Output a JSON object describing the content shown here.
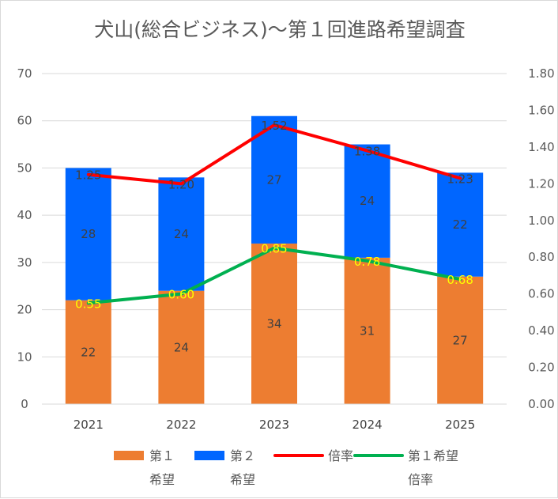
{
  "chart_data": {
    "type": "bar",
    "title": "犬山(総合ビジネス)〜第１回進路希望調査",
    "categories": [
      "2021",
      "2022",
      "2023",
      "2024",
      "2025"
    ],
    "stacked": true,
    "series": [
      {
        "name": "第１希望",
        "kind": "bar",
        "axis": "left",
        "color": "#ed7d31",
        "values": [
          22,
          24,
          34,
          31,
          27
        ],
        "labels": [
          "22",
          "24",
          "34",
          "31",
          "27"
        ]
      },
      {
        "name": "第２希望",
        "kind": "bar",
        "axis": "left",
        "color": "#0066ff",
        "values": [
          28,
          24,
          27,
          24,
          22
        ],
        "labels": [
          "28",
          "24",
          "27",
          "24",
          "22"
        ]
      },
      {
        "name": "倍率",
        "kind": "line",
        "axis": "right",
        "color": "#ff0000",
        "values": [
          1.25,
          1.2,
          1.52,
          1.38,
          1.23
        ],
        "labels": [
          "1.25",
          "1.20",
          "1.52",
          "1.38",
          "1.23"
        ]
      },
      {
        "name": "第１希望倍率",
        "kind": "line",
        "axis": "right",
        "color": "#00b050",
        "values": [
          0.55,
          0.6,
          0.85,
          0.78,
          0.68
        ],
        "labels": [
          "0.55",
          "0.60",
          "0.85",
          "0.78",
          "0.68"
        ]
      }
    ],
    "y_left": {
      "min": 0,
      "max": 70,
      "ticks": [
        "0",
        "10",
        "20",
        "30",
        "40",
        "50",
        "60",
        "70"
      ]
    },
    "y_right": {
      "min": 0,
      "max": 1.8,
      "ticks": [
        "0.00",
        "0.20",
        "0.40",
        "0.60",
        "0.80",
        "1.00",
        "1.20",
        "1.40",
        "1.60",
        "1.80"
      ]
    },
    "grid": true,
    "legend_position": "bottom",
    "legend": [
      {
        "line1": "第１",
        "line2": "希望",
        "color": "#ed7d31",
        "kind": "bar"
      },
      {
        "line1": "第２",
        "line2": "希望",
        "color": "#0066ff",
        "kind": "bar"
      },
      {
        "line1": "倍率",
        "line2": "",
        "color": "#ff0000",
        "kind": "line"
      },
      {
        "line1": "第１希望",
        "line2": "倍率",
        "color": "#00b050",
        "kind": "line"
      }
    ]
  }
}
